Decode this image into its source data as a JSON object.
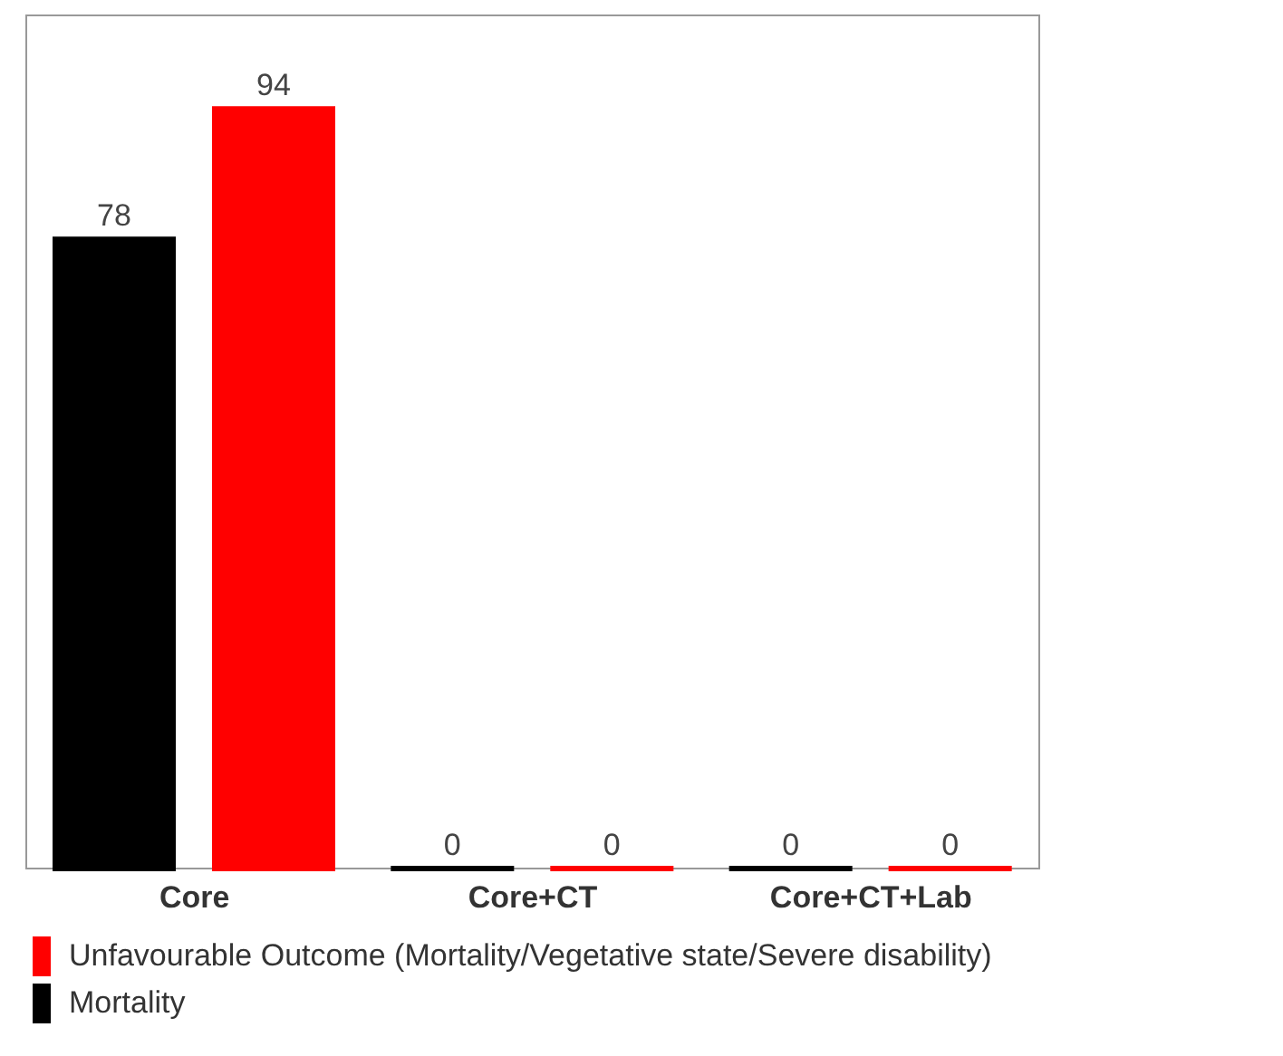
{
  "chart_data": {
    "type": "bar",
    "categories": [
      "Core",
      "Core+CT",
      "Core+CT+Lab"
    ],
    "series": [
      {
        "name": "Mortality",
        "color": "#000000",
        "values": [
          78,
          0,
          0
        ]
      },
      {
        "name": "Unfavourable Outcome (Mortality/Vegetative state/Severe disability)",
        "color": "#ff0000",
        "values": [
          94,
          0,
          0
        ]
      }
    ],
    "data_labels": true,
    "legend": "bottom left"
  }
}
